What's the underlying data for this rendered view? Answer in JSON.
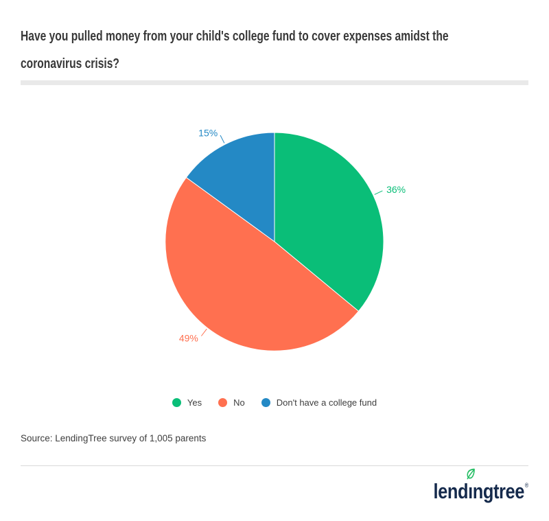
{
  "header": {
    "title_line1": "Have you pulled money from your child's college fund to cover expenses amidst the",
    "title_line2": "coronavirus crisis?"
  },
  "chart_data": {
    "type": "pie",
    "title": "Have you pulled money from your child's college fund to cover expenses amidst the coronavirus crisis?",
    "categories": [
      "Yes",
      "No",
      "Don't have a college fund"
    ],
    "values": [
      36,
      49,
      15
    ],
    "percent_labels": [
      "36%",
      "49%",
      "15%"
    ],
    "colors": [
      "#0abe78",
      "#ff7050",
      "#2489c5"
    ],
    "start_angle_deg": 0,
    "direction": "clockwise",
    "legend_position": "bottom",
    "slice_border_color": "#ffffff"
  },
  "source": {
    "text": "Source: LendingTree survey of 1,005 parents"
  },
  "footer": {
    "logo_text": "lendingtree",
    "registered_mark": "®",
    "logo_color": "#152a4c",
    "leaf_color": "#23bd62"
  }
}
